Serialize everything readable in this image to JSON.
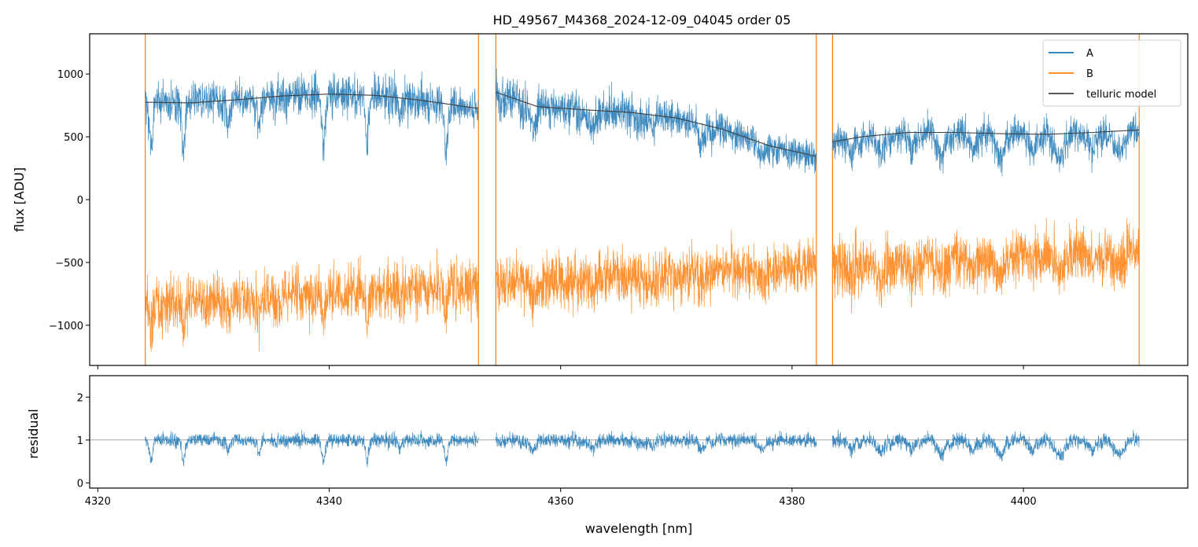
{
  "chart_data": [
    {
      "type": "line",
      "title": "HD_49567_M4368_2024-12-09_04045  order 05",
      "ylabel": "flux [ADU]",
      "xlim": [
        4319.3,
        4414.2
      ],
      "ylim": [
        -1320,
        1320
      ],
      "yticks": [
        -1000,
        -500,
        0,
        500,
        1000
      ],
      "ytick_labels": [
        "−1000",
        "−500",
        "0",
        "500",
        "1000"
      ],
      "grid": false,
      "legend_position": "top-right",
      "segments": [
        [
          4324.1,
          4352.9
        ],
        [
          4354.4,
          4382.1
        ],
        [
          4383.5,
          4410.0
        ]
      ],
      "series": [
        {
          "name": "A",
          "color": "#1f77b4",
          "kind": "noisy"
        },
        {
          "name": "B",
          "color": "#ff7f0e",
          "kind": "noisy"
        },
        {
          "name": "telluric model",
          "color": "#404040",
          "kind": "model"
        }
      ],
      "telluric_model": {
        "x": [
          4324.1,
          4328,
          4332,
          4336,
          4340,
          4344,
          4348,
          4352.9,
          4354.4,
          4358,
          4362,
          4366,
          4370,
          4374,
          4378,
          4382.1,
          4383.5,
          4386,
          4390,
          4394,
          4398,
          4402,
          4406,
          4410.0
        ],
        "y": [
          775,
          770,
          795,
          825,
          840,
          830,
          790,
          725,
          855,
          740,
          715,
          695,
          650,
          560,
          430,
          345,
          460,
          500,
          535,
          535,
          525,
          520,
          535,
          555
        ]
      }
    },
    {
      "type": "line",
      "xlabel": "wavelength [nm]",
      "ylabel": "residual",
      "xlim": [
        4319.3,
        4414.2
      ],
      "ylim": [
        -0.12,
        2.5
      ],
      "xticks": [
        4320,
        4340,
        4360,
        4380,
        4400
      ],
      "xtick_labels": [
        "4320",
        "4340",
        "4360",
        "4380",
        "4400"
      ],
      "yticks": [
        0,
        1,
        2
      ],
      "ytick_labels": [
        "0",
        "1",
        "2"
      ],
      "reference_line": 1,
      "series": [
        {
          "name": "",
          "color": "#1f77b4",
          "kind": "noisy"
        }
      ]
    }
  ]
}
